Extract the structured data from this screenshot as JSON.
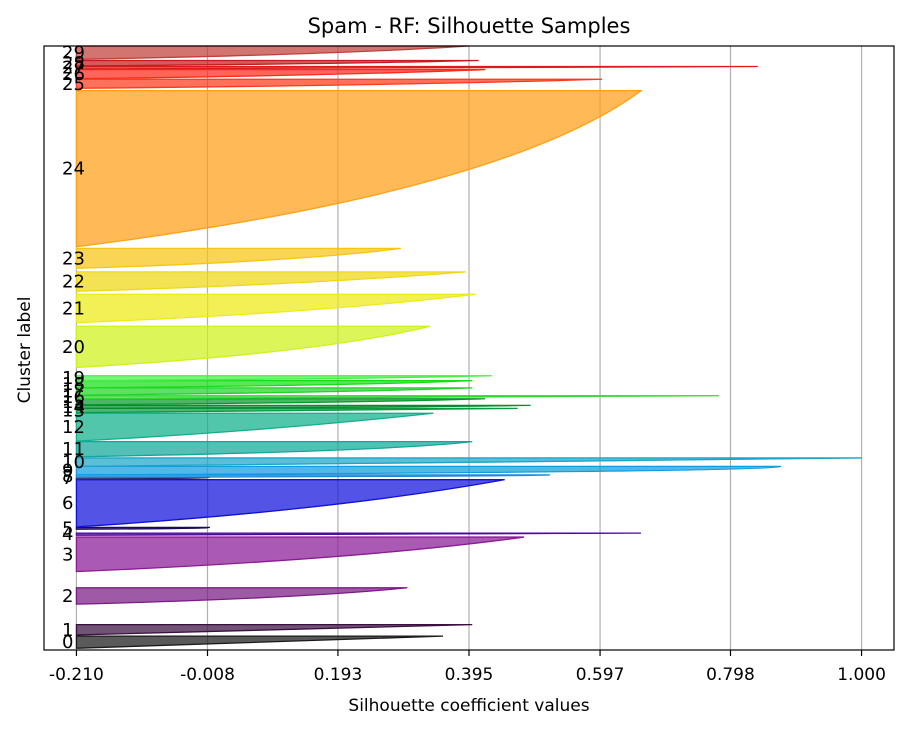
{
  "chart_data": {
    "type": "area",
    "title": "Spam - RF: Silhouette Samples",
    "xlabel": "Silhouette coefficient values",
    "ylabel": "Cluster label",
    "xlim": [
      -0.26,
      1.05
    ],
    "ylim": [
      0,
      100
    ],
    "xticks": [
      "-0.210",
      "-0.008",
      "0.193",
      "0.395",
      "0.597",
      "0.798",
      "1.000"
    ],
    "xtick_values": [
      -0.21,
      -0.008,
      0.193,
      0.395,
      0.597,
      0.798,
      1.0
    ],
    "grid": "vertical",
    "baseline": -0.21,
    "clusters": [
      {
        "label": "0",
        "y0": 0.3,
        "y1": 2.3,
        "max": 0.355,
        "mid": 0.0,
        "color": "#1a1a1a"
      },
      {
        "label": "1",
        "y0": 2.5,
        "y1": 4.2,
        "max": 0.4,
        "mid": 0.05,
        "color": "#3a1040"
      },
      {
        "label": "2",
        "y0": 7.6,
        "y1": 10.3,
        "max": 0.3,
        "mid": 0.14,
        "color": "#7a1a85"
      },
      {
        "label": "3",
        "y0": 13.0,
        "y1": 18.7,
        "max": 0.48,
        "mid": 0.23,
        "color": "#8b1a95"
      },
      {
        "label": "4",
        "y0": 19.0,
        "y1": 19.35,
        "max": 0.66,
        "mid": 0.55,
        "color": "#4a0aa0"
      },
      {
        "label": "5",
        "y0": 20.0,
        "y1": 20.3,
        "max": -0.005,
        "mid": -0.005,
        "color": "#1a0a5a"
      },
      {
        "label": "6",
        "y0": 20.4,
        "y1": 28.2,
        "max": 0.45,
        "mid": 0.19,
        "color": "#1010dd"
      },
      {
        "label": "7",
        "y0": 28.3,
        "y1": 28.6,
        "max": -0.005,
        "mid": -0.005,
        "color": "#2a2a6a"
      },
      {
        "label": "8",
        "y0": 28.6,
        "y1": 29.0,
        "max": 0.52,
        "mid": 0.48,
        "color": "#1a8ad8"
      },
      {
        "label": "9",
        "y0": 29.0,
        "y1": 30.4,
        "max": 0.875,
        "mid": 0.87,
        "color": "#0f9ce0"
      },
      {
        "label": "10",
        "y0": 30.4,
        "y1": 31.8,
        "max": 1.0,
        "mid": 0.46,
        "color": "#1aa6c8"
      },
      {
        "label": "11",
        "y0": 32.0,
        "y1": 34.5,
        "max": 0.4,
        "mid": 0.27,
        "color": "#12a898"
      },
      {
        "label": "12",
        "y0": 34.6,
        "y1": 39.2,
        "max": 0.34,
        "mid": 0.08,
        "color": "#0fb08a"
      },
      {
        "label": "13",
        "y0": 39.3,
        "y1": 40.0,
        "max": 0.47,
        "mid": 0.18,
        "color": "#0a9a40"
      },
      {
        "label": "14",
        "y0": 40.0,
        "y1": 40.5,
        "max": 0.49,
        "mid": 0.3,
        "color": "#078a30"
      },
      {
        "label": "15",
        "y0": 40.6,
        "y1": 41.6,
        "max": 0.42,
        "mid": 0.24,
        "color": "#069a2a"
      },
      {
        "label": "16",
        "y0": 41.6,
        "y1": 42.1,
        "max": 0.78,
        "mid": 0.3,
        "color": "#2ed82e"
      },
      {
        "label": "17",
        "y0": 42.2,
        "y1": 43.4,
        "max": 0.4,
        "mid": 0.2,
        "color": "#22d22a"
      },
      {
        "label": "18",
        "y0": 43.4,
        "y1": 44.6,
        "max": 0.4,
        "mid": 0.24,
        "color": "#16de16"
      },
      {
        "label": "19",
        "y0": 44.6,
        "y1": 45.4,
        "max": 0.43,
        "mid": 0.24,
        "color": "#46f046"
      },
      {
        "label": "20",
        "y0": 46.8,
        "y1": 53.6,
        "max": 0.335,
        "mid": 0.17,
        "color": "#cef21a"
      },
      {
        "label": "21",
        "y0": 54.2,
        "y1": 58.9,
        "max": 0.405,
        "mid": 0.17,
        "color": "#ecec14"
      },
      {
        "label": "22",
        "y0": 59.4,
        "y1": 62.6,
        "max": 0.39,
        "mid": 0.15,
        "color": "#eed812"
      },
      {
        "label": "23",
        "y0": 63.2,
        "y1": 66.5,
        "max": 0.29,
        "mid": 0.14,
        "color": "#f8c412"
      },
      {
        "label": "24",
        "y0": 66.8,
        "y1": 92.6,
        "max": 0.66,
        "mid": 0.45,
        "color": "#ffa016"
      },
      {
        "label": "25",
        "y0": 93.0,
        "y1": 94.5,
        "max": 0.6,
        "mid": 0.31,
        "color": "#ff3a1a"
      },
      {
        "label": "26",
        "y0": 94.6,
        "y1": 96.1,
        "max": 0.42,
        "mid": 0.2,
        "color": "#ff2a1a"
      },
      {
        "label": "27",
        "y0": 96.2,
        "y1": 96.6,
        "max": 0.84,
        "mid": 0.5,
        "color": "#dd1a1a"
      },
      {
        "label": "28",
        "y0": 96.7,
        "y1": 97.6,
        "max": 0.41,
        "mid": 0.2,
        "color": "#c41c1c"
      },
      {
        "label": "29",
        "y0": 97.8,
        "y1": 100.0,
        "max": 0.395,
        "mid": 0.19,
        "color": "#c0403a"
      }
    ]
  }
}
